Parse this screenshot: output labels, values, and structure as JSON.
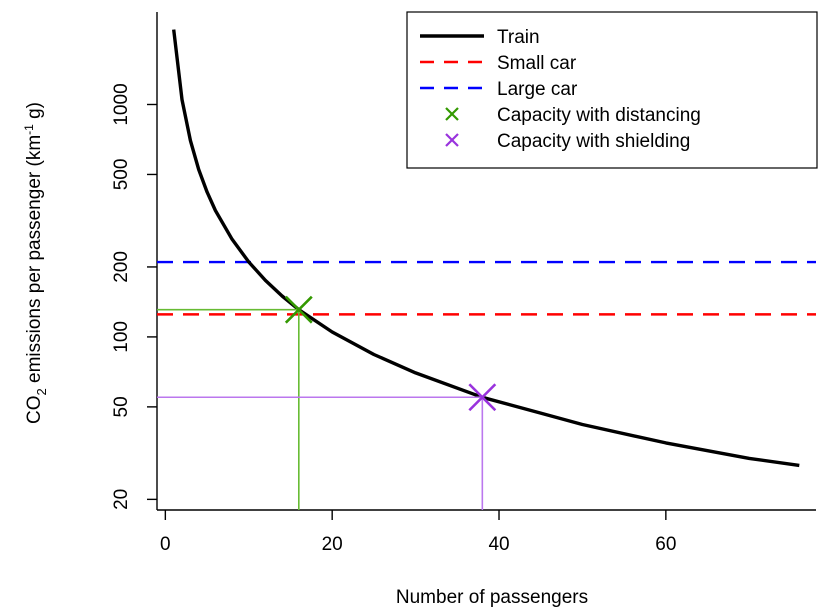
{
  "chart_data": {
    "type": "line",
    "xlabel": "Number of passengers",
    "ylabel": {
      "prefix": "CO",
      "sub": "2",
      "middle": " emissions per passenger (km",
      "sup": "-1",
      "suffix": " g)"
    },
    "xlim": [
      -1,
      78
    ],
    "ylim": [
      18,
      2500
    ],
    "yscale": "log",
    "x_ticks": [
      0,
      20,
      40,
      60
    ],
    "y_ticks": [
      20,
      50,
      100,
      200,
      500,
      1000
    ],
    "legend_position": "top-right",
    "series": [
      {
        "name": "Train",
        "style": "solid",
        "color": "#000000",
        "x": [
          1,
          2,
          3,
          4,
          5,
          6,
          8,
          10,
          12,
          14,
          16,
          20,
          25,
          30,
          38,
          45,
          50,
          60,
          70,
          76
        ],
        "y": [
          2100,
          1050,
          700,
          525,
          420,
          350,
          263,
          210,
          175,
          150,
          131,
          105,
          84,
          70,
          55,
          47,
          42,
          35,
          30,
          28
        ]
      },
      {
        "name": "Small car",
        "style": "dashed",
        "color": "#ff0000",
        "y_constant": 125
      },
      {
        "name": "Large car",
        "style": "dashed",
        "color": "#0000ff",
        "y_constant": 210
      }
    ],
    "markers": [
      {
        "name": "Capacity with distancing",
        "marker": "x",
        "color": "#339900",
        "line_color": "#66bb33",
        "x": 16,
        "y": 131
      },
      {
        "name": "Capacity with shielding",
        "marker": "x",
        "color": "#9933dd",
        "line_color": "#bb77ee",
        "x": 38,
        "y": 55
      }
    ]
  }
}
